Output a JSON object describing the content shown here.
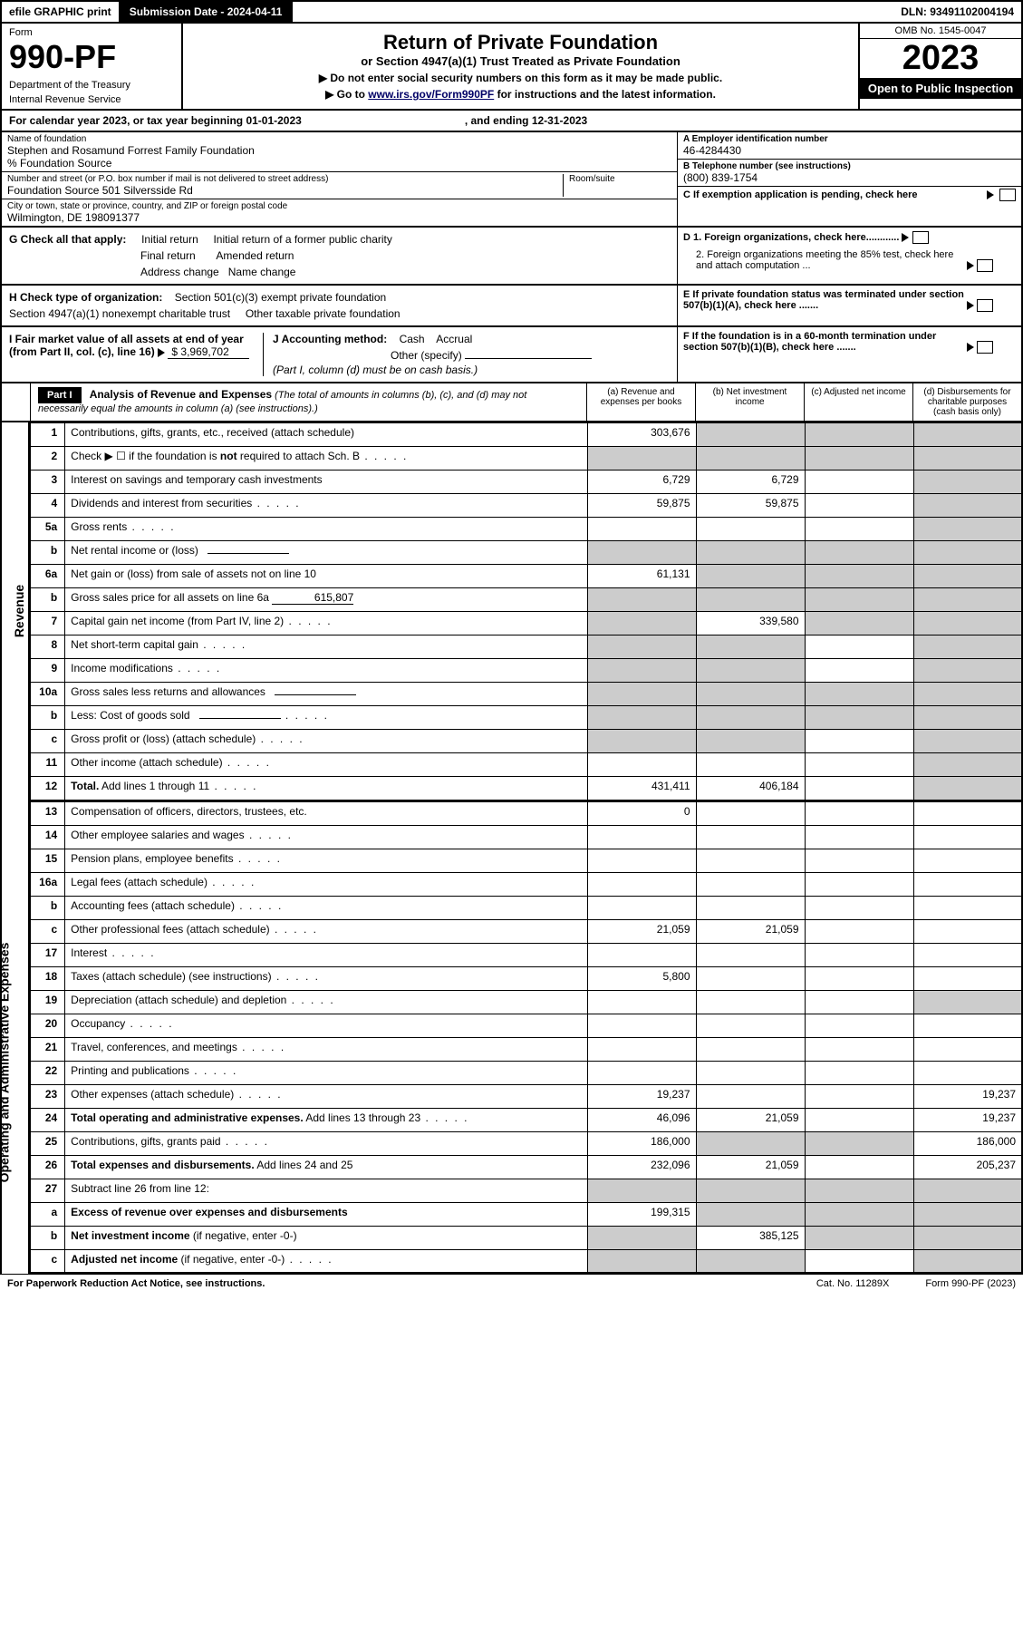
{
  "topbar": {
    "efile": "efile GRAPHIC print",
    "submission": "Submission Date - 2024-04-11",
    "dln": "DLN: 93491102004194"
  },
  "header": {
    "form_label": "Form",
    "form_number": "990-PF",
    "dept1": "Department of the Treasury",
    "dept2": "Internal Revenue Service",
    "title": "Return of Private Foundation",
    "subtitle": "or Section 4947(a)(1) Trust Treated as Private Foundation",
    "instr1": "▶ Do not enter social security numbers on this form as it may be made public.",
    "instr2_pre": "▶ Go to ",
    "instr2_link": "www.irs.gov/Form990PF",
    "instr2_post": " for instructions and the latest information.",
    "omb": "OMB No. 1545-0047",
    "year": "2023",
    "open": "Open to Public Inspection"
  },
  "cal": {
    "text1": "For calendar year 2023, or tax year beginning 01-01-2023",
    "text2": ", and ending 12-31-2023"
  },
  "foundation": {
    "name_lbl": "Name of foundation",
    "name": "Stephen and Rosamund Forrest Family Foundation",
    "care": "% Foundation Source",
    "addr_lbl": "Number and street (or P.O. box number if mail is not delivered to street address)",
    "addr": "Foundation Source 501 Silversside Rd",
    "room_lbl": "Room/suite",
    "city_lbl": "City or town, state or province, country, and ZIP or foreign postal code",
    "city": "Wilmington, DE  198091377",
    "ein_lbl": "A Employer identification number",
    "ein": "46-4284430",
    "phone_lbl": "B Telephone number (see instructions)",
    "phone": "(800) 839-1754",
    "pending": "C If exemption application is pending, check here"
  },
  "checks": {
    "g_label": "G Check all that apply:",
    "g1": "Initial return",
    "g2": "Initial return of a former public charity",
    "g3": "Final return",
    "g4": "Amended return",
    "g5": "Address change",
    "g6": "Name change",
    "h_label": "H Check type of organization:",
    "h1": "Section 501(c)(3) exempt private foundation",
    "h2": "Section 4947(a)(1) nonexempt charitable trust",
    "h3": "Other taxable private foundation",
    "i_label": "I Fair market value of all assets at end of year (from Part II, col. (c), line 16)",
    "i_val": "$  3,969,702",
    "j_label": "J Accounting method:",
    "j1": "Cash",
    "j2": "Accrual",
    "j3": "Other (specify)",
    "j_note": "(Part I, column (d) must be on cash basis.)",
    "d1": "D 1. Foreign organizations, check here............",
    "d2": "2. Foreign organizations meeting the 85% test, check here and attach computation ...",
    "e": "E  If private foundation status was terminated under section 507(b)(1)(A), check here .......",
    "f": "F  If the foundation is in a 60-month termination under section 507(b)(1)(B), check here .......",
    "arrow": "▶"
  },
  "part1": {
    "label": "Part I",
    "title": "Analysis of Revenue and Expenses",
    "note": " (The total of amounts in columns (b), (c), and (d) may not necessarily equal the amounts in column (a) (see instructions).)",
    "colA": "(a)  Revenue and expenses per books",
    "colB": "(b)  Net investment income",
    "colC": "(c)  Adjusted net income",
    "colD": "(d)  Disbursements for charitable purposes (cash basis only)"
  },
  "side": {
    "revenue": "Revenue",
    "expenses": "Operating and Administrative Expenses"
  },
  "rows": [
    {
      "n": "1",
      "d": "",
      "a": "303,676",
      "b": "",
      "c": "",
      "gb": true,
      "gc": true,
      "gd": true
    },
    {
      "n": "2",
      "d": "",
      "a": "",
      "b": "",
      "c": "",
      "ga": true,
      "gb": true,
      "gc": true,
      "gd": true,
      "dots": true
    },
    {
      "n": "3",
      "d": "",
      "a": "6,729",
      "b": "6,729",
      "c": "",
      "gd": true
    },
    {
      "n": "4",
      "d": "",
      "a": "59,875",
      "b": "59,875",
      "c": "",
      "gd": true,
      "dots": true
    },
    {
      "n": "5a",
      "d": "",
      "a": "",
      "b": "",
      "c": "",
      "gd": true,
      "dots": true
    },
    {
      "n": "b",
      "d": "",
      "a": "",
      "b": "",
      "c": "",
      "ga": true,
      "gb": true,
      "gc": true,
      "gd": true,
      "inline": true
    },
    {
      "n": "6a",
      "d": "",
      "a": "61,131",
      "b": "",
      "c": "",
      "gb": true,
      "gc": true,
      "gd": true
    },
    {
      "n": "b",
      "d": "",
      "a": "",
      "b": "",
      "c": "",
      "ga": true,
      "gb": true,
      "gc": true,
      "gd": true,
      "inline_val": "615,807"
    },
    {
      "n": "7",
      "d": "",
      "a": "",
      "b": "339,580",
      "c": "",
      "ga": true,
      "gc": true,
      "gd": true,
      "dots": true
    },
    {
      "n": "8",
      "d": "",
      "a": "",
      "b": "",
      "c": "",
      "ga": true,
      "gb": true,
      "gd": true,
      "dots": true
    },
    {
      "n": "9",
      "d": "",
      "a": "",
      "b": "",
      "c": "",
      "ga": true,
      "gb": true,
      "gd": true,
      "dots": true
    },
    {
      "n": "10a",
      "d": "",
      "a": "",
      "b": "",
      "c": "",
      "ga": true,
      "gb": true,
      "gc": true,
      "gd": true,
      "inline": true
    },
    {
      "n": "b",
      "d": "",
      "a": "",
      "b": "",
      "c": "",
      "ga": true,
      "gb": true,
      "gc": true,
      "gd": true,
      "inline": true,
      "dots": true
    },
    {
      "n": "c",
      "d": "",
      "a": "",
      "b": "",
      "c": "",
      "ga": true,
      "gb": true,
      "gd": true,
      "dots": true
    },
    {
      "n": "11",
      "d": "",
      "a": "",
      "b": "",
      "c": "",
      "gd": true,
      "dots": true
    },
    {
      "n": "12",
      "d": "",
      "a": "431,411",
      "b": "406,184",
      "c": "",
      "gd": true,
      "bold": true,
      "dots": true
    }
  ],
  "exp_rows": [
    {
      "n": "13",
      "d": "",
      "a": "0",
      "b": "",
      "c": ""
    },
    {
      "n": "14",
      "d": "",
      "a": "",
      "b": "",
      "c": "",
      "dots": true
    },
    {
      "n": "15",
      "d": "",
      "a": "",
      "b": "",
      "c": "",
      "dots": true
    },
    {
      "n": "16a",
      "d": "",
      "a": "",
      "b": "",
      "c": "",
      "dots": true
    },
    {
      "n": "b",
      "d": "",
      "a": "",
      "b": "",
      "c": "",
      "dots": true
    },
    {
      "n": "c",
      "d": "",
      "a": "21,059",
      "b": "21,059",
      "c": "",
      "dots": true
    },
    {
      "n": "17",
      "d": "",
      "a": "",
      "b": "",
      "c": "",
      "dots": true
    },
    {
      "n": "18",
      "d": "",
      "a": "5,800",
      "b": "",
      "c": "",
      "dots": true
    },
    {
      "n": "19",
      "d": "",
      "a": "",
      "b": "",
      "c": "",
      "gd": true,
      "dots": true
    },
    {
      "n": "20",
      "d": "",
      "a": "",
      "b": "",
      "c": "",
      "dots": true
    },
    {
      "n": "21",
      "d": "",
      "a": "",
      "b": "",
      "c": "",
      "dots": true
    },
    {
      "n": "22",
      "d": "",
      "a": "",
      "b": "",
      "c": "",
      "dots": true
    },
    {
      "n": "23",
      "d": "19,237",
      "a": "19,237",
      "b": "",
      "c": "",
      "dots": true
    },
    {
      "n": "24",
      "d": "19,237",
      "a": "46,096",
      "b": "21,059",
      "c": "",
      "bold": true,
      "dots": true
    },
    {
      "n": "25",
      "d": "186,000",
      "a": "186,000",
      "b": "",
      "c": "",
      "gb": true,
      "gc": true,
      "dots": true
    },
    {
      "n": "26",
      "d": "205,237",
      "a": "232,096",
      "b": "21,059",
      "c": "",
      "bold": true
    },
    {
      "n": "27",
      "d": "",
      "a": "",
      "b": "",
      "c": "",
      "ga": true,
      "gb": true,
      "gc": true,
      "gd": true
    },
    {
      "n": "a",
      "d": "",
      "a": "199,315",
      "b": "",
      "c": "",
      "gb": true,
      "gc": true,
      "gd": true,
      "bold": true
    },
    {
      "n": "b",
      "d": "",
      "a": "",
      "b": "385,125",
      "c": "",
      "ga": true,
      "gc": true,
      "gd": true,
      "bold": true
    },
    {
      "n": "c",
      "d": "",
      "a": "",
      "b": "",
      "c": "",
      "ga": true,
      "gb": true,
      "gd": true,
      "bold": true,
      "dots": true
    }
  ],
  "footer": {
    "left": "For Paperwork Reduction Act Notice, see instructions.",
    "center": "Cat. No. 11289X",
    "right": "Form 990-PF (2023)"
  },
  "colors": {
    "black": "#000000",
    "grey": "#cccccc",
    "link": "#000066"
  }
}
